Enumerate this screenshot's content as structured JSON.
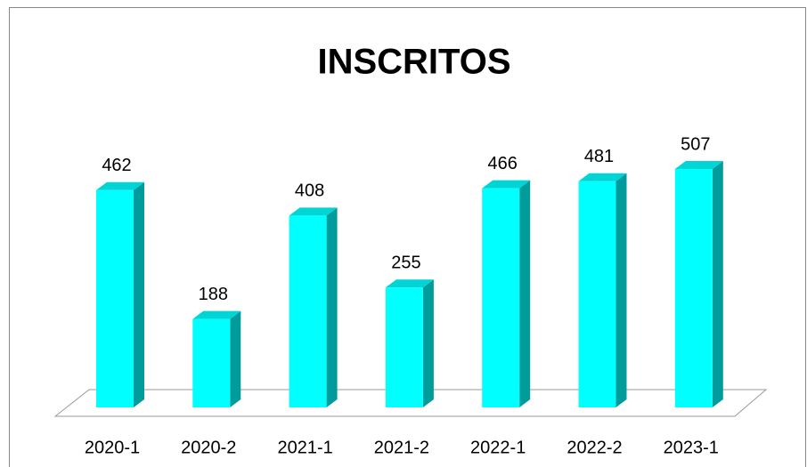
{
  "chart_data": {
    "type": "bar3d",
    "title": "INSCRITOS",
    "categories": [
      "2020-1",
      "2020-2",
      "2021-1",
      "2021-2",
      "2022-1",
      "2022-2",
      "2023-1"
    ],
    "values": [
      462,
      188,
      408,
      255,
      466,
      481,
      507
    ],
    "color": "#00ffff"
  }
}
